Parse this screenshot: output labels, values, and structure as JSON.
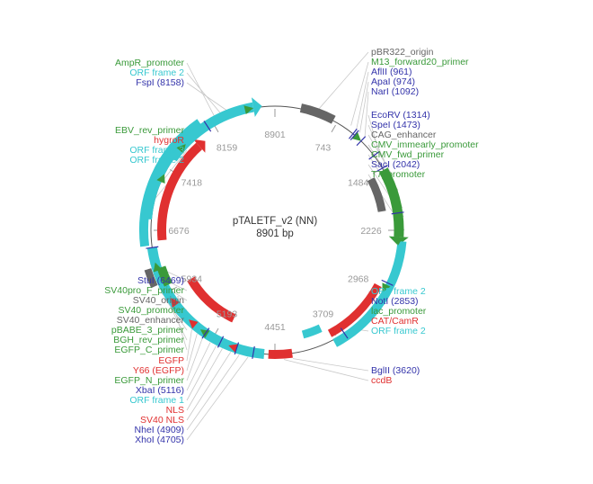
{
  "plasmid": {
    "name": "pTALETF_v2 (NN)",
    "length_label": "8901 bp",
    "length_bp": 8901
  },
  "colors": {
    "enzyme": "#3333aa",
    "feature_green": "#3a9a3a",
    "orf": "#37c8d0",
    "red": "#e03030",
    "grey": "#666666",
    "backbone": "#555555",
    "leader": "#c8c8c8",
    "ticks": "#999999"
  },
  "ticks": [
    {
      "label": "8901"
    },
    {
      "label": "743"
    },
    {
      "label": "1484"
    },
    {
      "label": "2226"
    },
    {
      "label": "2968"
    },
    {
      "label": "3709"
    },
    {
      "label": "4451"
    },
    {
      "label": "5193"
    },
    {
      "label": "5934"
    },
    {
      "label": "6676"
    },
    {
      "label": "7418"
    },
    {
      "label": "8159"
    }
  ],
  "labels_left": [
    {
      "text": "AmpR_promoter",
      "type": "feature_green"
    },
    {
      "text": "ORF frame 2",
      "type": "orf"
    },
    {
      "text": "FspI (8158)",
      "type": "enzyme"
    },
    {
      "text": "EBV_rev_primer",
      "type": "feature_green"
    },
    {
      "text": "hygroR",
      "type": "red"
    },
    {
      "text": "ORF frame 3",
      "type": "orf"
    },
    {
      "text": "ORF frame 2",
      "type": "orf"
    },
    {
      "text": "StuI (6469)",
      "type": "enzyme"
    },
    {
      "text": "SV40pro_F_primer",
      "type": "feature_green"
    },
    {
      "text": "SV40_origin",
      "type": "grey"
    },
    {
      "text": "SV40_promoter",
      "type": "feature_green"
    },
    {
      "text": "SV40_enhancer",
      "type": "grey"
    },
    {
      "text": "pBABE_3_primer",
      "type": "feature_green"
    },
    {
      "text": "BGH_rev_primer",
      "type": "feature_green"
    },
    {
      "text": "EGFP_C_primer",
      "type": "feature_green"
    },
    {
      "text": "EGFP",
      "type": "red"
    },
    {
      "text": "Y66 (EGFP)",
      "type": "red"
    },
    {
      "text": "EGFP_N_primer",
      "type": "feature_green"
    },
    {
      "text": "XbaI (5116)",
      "type": "enzyme"
    },
    {
      "text": "ORF frame 1",
      "type": "orf"
    },
    {
      "text": "NLS",
      "type": "red"
    },
    {
      "text": "SV40 NLS",
      "type": "red"
    },
    {
      "text": "NheI (4909)",
      "type": "enzyme"
    },
    {
      "text": "XhoI (4705)",
      "type": "enzyme"
    }
  ],
  "labels_right": [
    {
      "text": "pBR322_origin",
      "type": "grey"
    },
    {
      "text": "M13_forward20_primer",
      "type": "feature_green"
    },
    {
      "text": "AflII (961)",
      "type": "enzyme"
    },
    {
      "text": "ApaI (974)",
      "type": "enzyme"
    },
    {
      "text": "NarI (1092)",
      "type": "enzyme"
    },
    {
      "text": "EcoRV (1314)",
      "type": "enzyme"
    },
    {
      "text": "SpeI (1473)",
      "type": "enzyme"
    },
    {
      "text": "CAG_enhancer",
      "type": "grey"
    },
    {
      "text": "CMV_immearly_promoter",
      "type": "feature_green"
    },
    {
      "text": "CMV_fwd_primer",
      "type": "feature_green"
    },
    {
      "text": "SacI (2042)",
      "type": "enzyme"
    },
    {
      "text": "T7_promoter",
      "type": "feature_green"
    },
    {
      "text": "ORF frame 2",
      "type": "orf"
    },
    {
      "text": "NotI (2853)",
      "type": "enzyme"
    },
    {
      "text": "lac_promoter",
      "type": "feature_green"
    },
    {
      "text": "CAT/CamR",
      "type": "red"
    },
    {
      "text": "ORF frame 2",
      "type": "orf"
    },
    {
      "text": "BglII (3620)",
      "type": "enzyme"
    },
    {
      "text": "ccdB",
      "type": "red"
    }
  ]
}
